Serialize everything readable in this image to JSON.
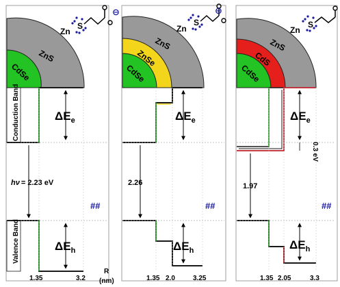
{
  "panels": [
    {
      "shells": [
        {
          "label": "CdSe",
          "color": "#22c322"
        },
        {
          "label": "ZnS",
          "color": "#999999"
        }
      ],
      "ligand": {
        "metal": "Zn",
        "atom": "S",
        "charge": "⊖"
      },
      "band_labels": {
        "conduction": "Conduction Band",
        "valence": "Valence Band"
      },
      "delta_e": {
        "electron": "ΔE",
        "electron_sub": "e",
        "hole": "ΔE",
        "hole_sub": "h"
      },
      "transition": {
        "prefix": "hν",
        "value": "= 2.23 eV"
      },
      "ticks": [
        "1.35",
        "3.2"
      ],
      "axis_label": {
        "symbol": "R",
        "unit": "(nm)"
      },
      "pair_symbol": "##"
    },
    {
      "shells": [
        {
          "label": "CdSe",
          "color": "#22c322"
        },
        {
          "label": "ZnSe",
          "color": "#f3d51b"
        },
        {
          "label": "ZnS",
          "color": "#999999"
        }
      ],
      "ligand": {
        "metal": "Zn",
        "atom": "S",
        "charge": "⊖"
      },
      "delta_e": {
        "electron": "ΔE",
        "electron_sub": "e",
        "hole": "ΔE",
        "hole_sub": "h"
      },
      "transition": {
        "value": "2.26"
      },
      "ticks": [
        "1.35",
        "2.0",
        "3.25"
      ],
      "pair_symbol": "##"
    },
    {
      "shells": [
        {
          "label": "CdSe",
          "color": "#22c322"
        },
        {
          "label": "CdS",
          "color": "#e5201c"
        },
        {
          "label": "ZnS",
          "color": "#999999"
        }
      ],
      "ligand": {
        "metal": "Zn",
        "atom": "S",
        "charge": "⊖"
      },
      "delta_e": {
        "electron": "ΔE",
        "electron_sub": "e",
        "hole": "ΔE",
        "hole_sub": "h"
      },
      "offset_label": "0.3 eV",
      "transition": {
        "value": "1.97"
      },
      "ticks": [
        "1.35",
        "2.05",
        "3.3"
      ],
      "pair_symbol": "##"
    }
  ],
  "colors": {
    "zns": "#999999",
    "cdse": "#22c322",
    "znse": "#f3d51b",
    "cds": "#e5201c",
    "ligand_charge": "#1a1aa0",
    "band_line": "#1a1a1a"
  }
}
